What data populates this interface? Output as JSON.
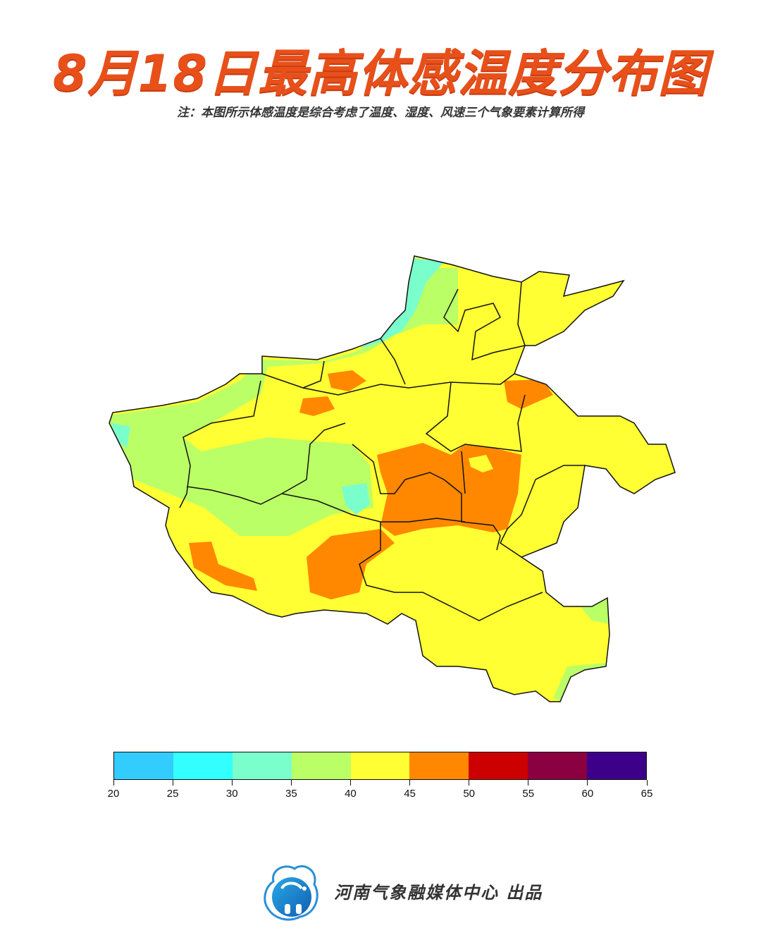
{
  "title": "8月18日最高体感温度分布图",
  "subtitle": "注：本图所示体感温度是综合考虑了温度、湿度、风速三个气象要素计算所得",
  "legend": {
    "ticks": [
      "20",
      "25",
      "30",
      "35",
      "40",
      "45",
      "50",
      "55",
      "60",
      "65"
    ],
    "colors": [
      "#33ccff",
      "#33ffff",
      "#7affcc",
      "#bbff66",
      "#ffff33",
      "#ff8800",
      "#cc0000",
      "#8b0040",
      "#3d0088"
    ]
  },
  "map": {
    "region_colors": {
      "cool": "#7affcc",
      "mild": "#bbff66",
      "warm": "#ffff33",
      "hot": "#ff8800",
      "border": "#111111"
    }
  },
  "footer": {
    "logo_icon": "elephant-cloud-logo",
    "text": "河南气象融媒体中心  出品"
  }
}
